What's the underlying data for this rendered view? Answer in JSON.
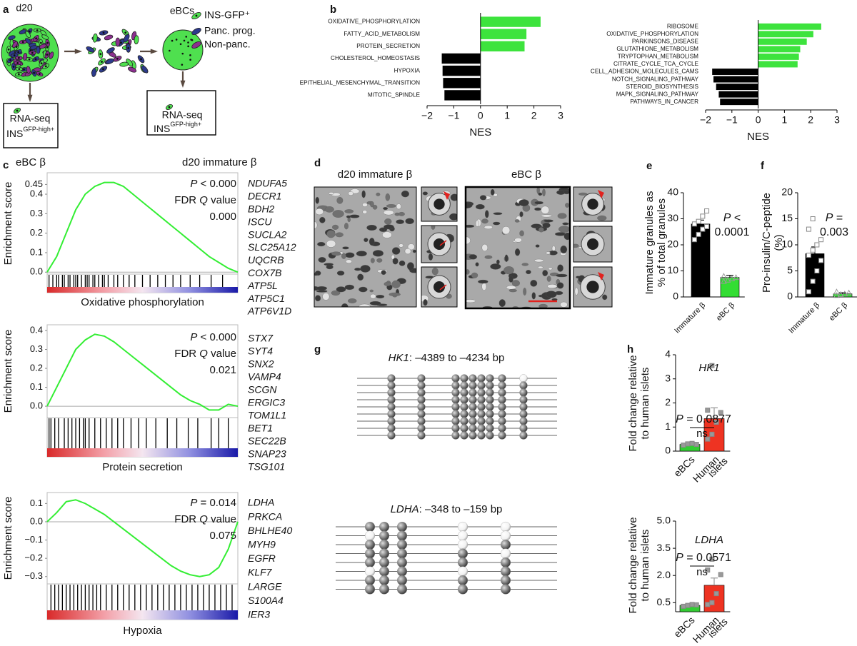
{
  "panel_labels": [
    "a",
    "b",
    "c",
    "d",
    "e",
    "f",
    "g",
    "h"
  ],
  "panel_a": {
    "left_title": "d20",
    "right_title": "eBCs",
    "legend": [
      "INS-GFP⁺",
      "Panc. prog.",
      "Non-panc."
    ],
    "boxes": [
      {
        "line1": "RNA-seq",
        "ins": "INS",
        "sup": "GFP-high+"
      },
      {
        "line1": "RNA-seq",
        "ins": "INS",
        "sup": "GFP-high+"
      }
    ]
  },
  "panel_c_headers": [
    "eBC β",
    "d20 immature β"
  ],
  "panel_d": {
    "labels": [
      "d20 immature β",
      "eBC β"
    ]
  },
  "panel_g": {
    "plots": [
      {
        "gene": "HK1",
        "range": ": –4389 to –4234 bp",
        "methylation": [
          [
            1,
            1,
            1,
            1,
            1,
            1,
            1,
            1,
            0
          ],
          [
            1,
            1,
            1,
            1,
            1,
            1,
            1,
            1,
            1
          ],
          [
            1,
            1,
            1,
            1,
            1,
            1,
            1,
            1,
            1
          ],
          [
            1,
            1,
            1,
            1,
            1,
            1,
            1,
            1,
            1
          ],
          [
            1,
            1,
            1,
            1,
            1,
            1,
            1,
            1,
            1
          ],
          [
            1,
            1,
            1,
            1,
            1,
            1,
            1,
            1,
            1
          ],
          [
            1,
            1,
            1,
            1,
            1,
            1,
            1,
            1,
            1
          ],
          [
            1,
            1,
            1,
            1,
            1,
            1,
            1,
            1,
            1
          ],
          [
            1,
            1,
            1,
            1,
            1,
            1,
            1,
            1,
            1
          ]
        ]
      },
      {
        "gene": "LDHA",
        "range": ": –348 to –159 bp",
        "methylation": [
          [
            1,
            1,
            1,
            0,
            0
          ],
          [
            0,
            1,
            1,
            0,
            0
          ],
          [
            1,
            1,
            1,
            0,
            1
          ],
          [
            1,
            1,
            1,
            1,
            0
          ],
          [
            1,
            1,
            1,
            1,
            1
          ],
          [
            0,
            1,
            1,
            0,
            1
          ],
          [
            1,
            1,
            1,
            1,
            1
          ],
          [
            1,
            1,
            1,
            1,
            1
          ]
        ]
      }
    ]
  },
  "chart_data": [
    {
      "type": "bar",
      "orientation": "horizontal",
      "categories": [
        "OXIDATIVE_PHOSPHORYLATION",
        "FATTY_ACID_METABOLISM",
        "PROTEIN_SECRETION",
        "CHOLESTEROL_HOMEOSTASIS",
        "HYPOXIA",
        "EPITHELIAL_MESENCHYMAL_TRANSITION",
        "MITOTIC_SPINDLE"
      ],
      "values": [
        2.25,
        1.72,
        1.65,
        -1.45,
        -1.42,
        -1.4,
        -1.35
      ],
      "colors": [
        "#3de33d",
        "#3de33d",
        "#3de33d",
        "#000000",
        "#000000",
        "#000000",
        "#000000"
      ],
      "xlim": [
        -2,
        3
      ],
      "xticks": [
        {
          "value": -2,
          "label": "−2"
        },
        {
          "value": -1,
          "label": "−1"
        },
        0,
        1,
        2,
        3
      ],
      "xlabel": "NES"
    },
    {
      "type": "bar",
      "orientation": "horizontal",
      "categories": [
        "RIBOSOME",
        "OXIDATIVE_PHOSPHORYLATION",
        "PARKINSONS_DISEASE",
        "GLUTATHIONE_METABOLISM",
        "TRYPTOPHAN_METABOLISM",
        "CITRATE_CYCLE_TCA_CYCLE",
        "CELL_ADHESION_MOLECULES_CAMS",
        "NOTCH_SIGNALING_PATHWAY",
        "STEROID_BIOSYNTHESIS",
        "MAPK_SIGNALING_PATHWAY",
        "PATHWAYS_IN_CANCER"
      ],
      "values": [
        2.4,
        2.1,
        1.85,
        1.6,
        1.55,
        1.5,
        -1.75,
        -1.7,
        -1.6,
        -1.5,
        -1.45
      ],
      "colors": [
        "#3de33d",
        "#3de33d",
        "#3de33d",
        "#3de33d",
        "#3de33d",
        "#3de33d",
        "#000000",
        "#000000",
        "#000000",
        "#000000",
        "#000000"
      ],
      "xlim": [
        -2,
        3
      ],
      "xticks": [
        {
          "value": -2,
          "label": "−2"
        },
        {
          "value": -1,
          "label": "−1"
        },
        0,
        1,
        2,
        3
      ],
      "xlabel": "NES"
    },
    {
      "type": "line",
      "ylabel": "Enrichment score",
      "xlabel": "Oxidative phosphorylation",
      "color": "#33ee33",
      "values": [
        0.0,
        0.08,
        0.2,
        0.32,
        0.4,
        0.44,
        0.46,
        0.46,
        0.44,
        0.4,
        0.36,
        0.32,
        0.28,
        0.24,
        0.2,
        0.16,
        0.12,
        0.08,
        0.05,
        0.02,
        0.0
      ],
      "hits": [
        1,
        3,
        5,
        6,
        8,
        9,
        11,
        12,
        14,
        15,
        16,
        18,
        20,
        21,
        22,
        24,
        25,
        27,
        29,
        30,
        32,
        35,
        37,
        40,
        43,
        46,
        50,
        54,
        58,
        62,
        66,
        70,
        75,
        80,
        86,
        92
      ],
      "ylim": [
        -0.01,
        0.51
      ],
      "yticks": [
        {
          "value": 0,
          "label": "0.0"
        },
        0.1,
        0.2,
        0.3,
        0.4,
        0.45
      ],
      "stats": [
        [
          "P",
          " < 0.000"
        ],
        [
          "FDR ",
          "Q",
          " value"
        ],
        [
          "0.000"
        ]
      ],
      "genes": [
        "NDUFA5",
        "DECR1",
        "BDH2",
        "ISCU",
        "SUCLA2",
        "SLC25A12",
        "UQCRB",
        "COX7B",
        "ATP5L",
        "ATP5C1",
        "ATP6V1D"
      ]
    },
    {
      "type": "line",
      "ylabel": "Enrichment score",
      "xlabel": "Protein secretion",
      "color": "#33ee33",
      "values": [
        0.0,
        0.1,
        0.2,
        0.3,
        0.35,
        0.38,
        0.37,
        0.34,
        0.3,
        0.26,
        0.22,
        0.18,
        0.14,
        0.1,
        0.06,
        0.03,
        0.01,
        -0.02,
        -0.02,
        0.01,
        0.0
      ],
      "hits": [
        1,
        2,
        4,
        6,
        9,
        11,
        13,
        15,
        17,
        19,
        20,
        22,
        25,
        28,
        31,
        34,
        37,
        40,
        44,
        48,
        52,
        57,
        63,
        68,
        74,
        79,
        86,
        90,
        95
      ],
      "ylim": [
        -0.06,
        0.43
      ],
      "yticks": [
        {
          "value": 0,
          "label": "0.0"
        },
        0.1,
        0.2,
        0.3,
        0.4
      ],
      "stats": [
        [
          "P",
          " < 0.000"
        ],
        [
          "FDR ",
          "Q",
          " value"
        ],
        [
          "0.021"
        ]
      ],
      "genes": [
        "STX7",
        "SYT4",
        "SNX2",
        "VAMP4",
        "SCGN",
        "ERGIC3",
        "TOM1L1",
        "BET1",
        "SEC22B",
        "SNAP23",
        "TSG101"
      ]
    },
    {
      "type": "line",
      "ylabel": "Enrichment score",
      "xlabel": "Hypoxia",
      "color": "#33ee33",
      "values": [
        0.0,
        0.05,
        0.11,
        0.12,
        0.1,
        0.07,
        0.04,
        0.0,
        -0.04,
        -0.08,
        -0.12,
        -0.16,
        -0.2,
        -0.24,
        -0.27,
        -0.29,
        -0.3,
        -0.29,
        -0.25,
        -0.15,
        0.0
      ],
      "hits": [
        2,
        4,
        6,
        8,
        10,
        12,
        14,
        16,
        18,
        20,
        22,
        24,
        26,
        28,
        31,
        34,
        37,
        40,
        43,
        46,
        49,
        52,
        55,
        58,
        61,
        64,
        67,
        70,
        73,
        76,
        79,
        82,
        85,
        88,
        91,
        94,
        97
      ],
      "ylim": [
        -0.34,
        0.16
      ],
      "yticks": [
        {
          "value": -0.3,
          "label": "−0.3"
        },
        {
          "value": -0.2,
          "label": "−0.2"
        },
        {
          "value": -0.1,
          "label": "−0.1"
        },
        {
          "value": 0,
          "label": "0.0"
        },
        0.1
      ],
      "stats": [
        [
          "P",
          " = 0.014"
        ],
        [
          "FDR ",
          "Q",
          " value"
        ],
        [
          "0.075"
        ]
      ],
      "genes": [
        "LDHA",
        "PRKCA",
        "BHLHE40",
        "MYH9",
        "EGFR",
        "KLF7",
        "LARGE",
        "S100A4",
        "IER3"
      ]
    },
    {
      "type": "bar",
      "ylabel": [
        "Immature granules as",
        "% of total granules"
      ],
      "categories": [
        [
          "Immature β"
        ],
        [
          "eBC β"
        ]
      ],
      "values": [
        28,
        7.5
      ],
      "errors": [
        1.5,
        0.8
      ],
      "colors": [
        "#000000",
        "#33dd33"
      ],
      "points": [
        [
          22,
          24,
          26,
          27,
          28,
          29,
          31,
          33
        ],
        [
          6,
          6.5,
          7,
          7.5,
          8
        ]
      ],
      "point_markers": [
        "square",
        "triangle"
      ],
      "ylim": [
        0,
        40
      ],
      "yticks": [
        0,
        10,
        20,
        30,
        40
      ],
      "annotation": [
        [
          "P",
          " <"
        ],
        [
          "0.0001"
        ]
      ]
    },
    {
      "type": "bar",
      "ylabel": [
        "Pro-insulin/C-peptide",
        "(%)"
      ],
      "categories": [
        [
          "Immature β"
        ],
        [
          "eBC β"
        ]
      ],
      "values": [
        8.3,
        0.6
      ],
      "errors": [
        1.3,
        0.2
      ],
      "colors": [
        "#000000",
        "#33dd33"
      ],
      "points": [
        [
          1,
          3,
          5,
          7,
          8,
          9,
          10,
          11,
          13,
          15
        ],
        [
          0.3,
          0.5,
          0.6,
          0.8,
          1.0
        ]
      ],
      "point_markers": [
        "square",
        "triangle"
      ],
      "ylim": [
        0,
        20
      ],
      "yticks": [
        0,
        5,
        10,
        15,
        20
      ],
      "annotation": [
        [
          "P",
          " ="
        ],
        [
          "0.003"
        ]
      ]
    },
    {
      "type": "bar",
      "title": "HK1",
      "ylabel": [
        "Fold change relative",
        "to human islets"
      ],
      "categories": [
        [
          "eBCs"
        ],
        [
          "Human",
          "islets"
        ]
      ],
      "values": [
        0.28,
        1.35
      ],
      "errors": [
        0.05,
        0.45
      ],
      "colors": [
        "#33cc33",
        "#ee3322"
      ],
      "points": [
        [
          0.25,
          0.3,
          0.32,
          0.28
        ],
        [
          0.5,
          0.7,
          1.2,
          1.6,
          1.7,
          3.55
        ]
      ],
      "point_markers": [
        "filled-square",
        "filled-square"
      ],
      "ylim": [
        0,
        4
      ],
      "yticks": [
        0,
        1,
        2,
        3,
        4
      ],
      "annotation": [
        [
          "P",
          " = 0.0877"
        ]
      ],
      "significance": "ns"
    },
    {
      "type": "bar",
      "title": "LDHA",
      "ylabel": [
        "Fold change relative",
        "to human islets"
      ],
      "categories": [
        [
          "eBCs"
        ],
        [
          "Human",
          "islets"
        ]
      ],
      "values": [
        0.35,
        1.46
      ],
      "errors": [
        0.05,
        0.4
      ],
      "colors": [
        "#33cc33",
        "#ee3322"
      ],
      "points": [
        [
          0.3,
          0.35,
          0.4,
          0.38
        ],
        [
          0.4,
          0.5,
          1.0,
          2.05,
          2.3,
          2.9
        ]
      ],
      "point_markers": [
        "filled-square",
        "filled-square"
      ],
      "ylim": [
        0,
        5
      ],
      "yticks": [
        0.5,
        {
          "value": 2,
          "label": "2.0"
        },
        3.5,
        {
          "value": 5,
          "label": "5.0"
        }
      ],
      "annotation": [
        [
          "P",
          " = 0.0571"
        ]
      ],
      "significance": "ns"
    }
  ]
}
